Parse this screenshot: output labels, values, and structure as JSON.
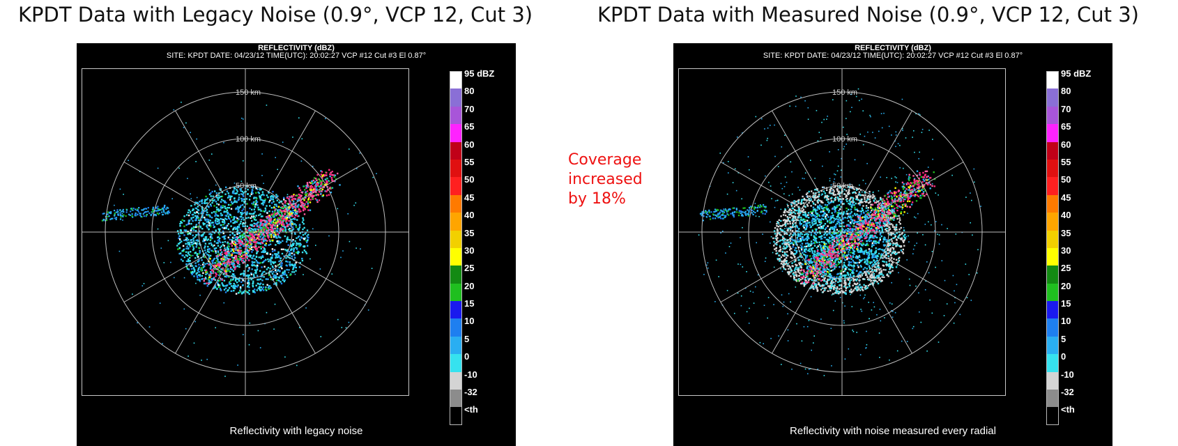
{
  "left_title": "KPDT Data with Legacy Noise (0.9°, VCP 12, Cut 3)",
  "right_title": "KPDT Data with Measured Noise (0.9°, VCP 12, Cut 3)",
  "note": [
    "Coverage",
    "increased",
    "by 18%"
  ],
  "panels": [
    {
      "header1": "REFLECTIVITY (dBZ)",
      "header2": "SITE: KPDT DATE: 04/23/12 TIME(UTC): 20:02:27 VCP #12 Cut #3 El 0.87°",
      "caption": "Reflectivity with legacy noise",
      "noise": "legacy"
    },
    {
      "header1": "REFLECTIVITY (dBZ)",
      "header2": "SITE: KPDT DATE: 04/23/12 TIME(UTC): 20:02:27 VCP #12 Cut #3 El 0.87°",
      "caption": "Reflectivity with noise measured every radial",
      "noise": "measured"
    }
  ],
  "range_rings": [
    "50 km",
    "100 km",
    "150 km"
  ],
  "color_scale": [
    {
      "label": "95 dBZ",
      "color": "#ffffff"
    },
    {
      "label": "80",
      "color": "#8a6fd6"
    },
    {
      "label": "70",
      "color": "#a855d9"
    },
    {
      "label": "65",
      "color": "#ff22ff"
    },
    {
      "label": "60",
      "color": "#c00018"
    },
    {
      "label": "55",
      "color": "#e01010"
    },
    {
      "label": "50",
      "color": "#ff2020"
    },
    {
      "label": "45",
      "color": "#ff7a00"
    },
    {
      "label": "40",
      "color": "#ffa500"
    },
    {
      "label": "35",
      "color": "#f2d000"
    },
    {
      "label": "30",
      "color": "#ffff00"
    },
    {
      "label": "25",
      "color": "#138a13"
    },
    {
      "label": "20",
      "color": "#1fbf1f"
    },
    {
      "label": "15",
      "color": "#1a1aee"
    },
    {
      "label": "10",
      "color": "#1e7ff0"
    },
    {
      "label": "5",
      "color": "#2aaef2"
    },
    {
      "label": "0",
      "color": "#36e2ef"
    },
    {
      "label": "-10",
      "color": "#d4d4d4"
    },
    {
      "label": "-32",
      "color": "#8c8c8c"
    },
    {
      "label": "<th",
      "color": "#000000"
    }
  ]
}
